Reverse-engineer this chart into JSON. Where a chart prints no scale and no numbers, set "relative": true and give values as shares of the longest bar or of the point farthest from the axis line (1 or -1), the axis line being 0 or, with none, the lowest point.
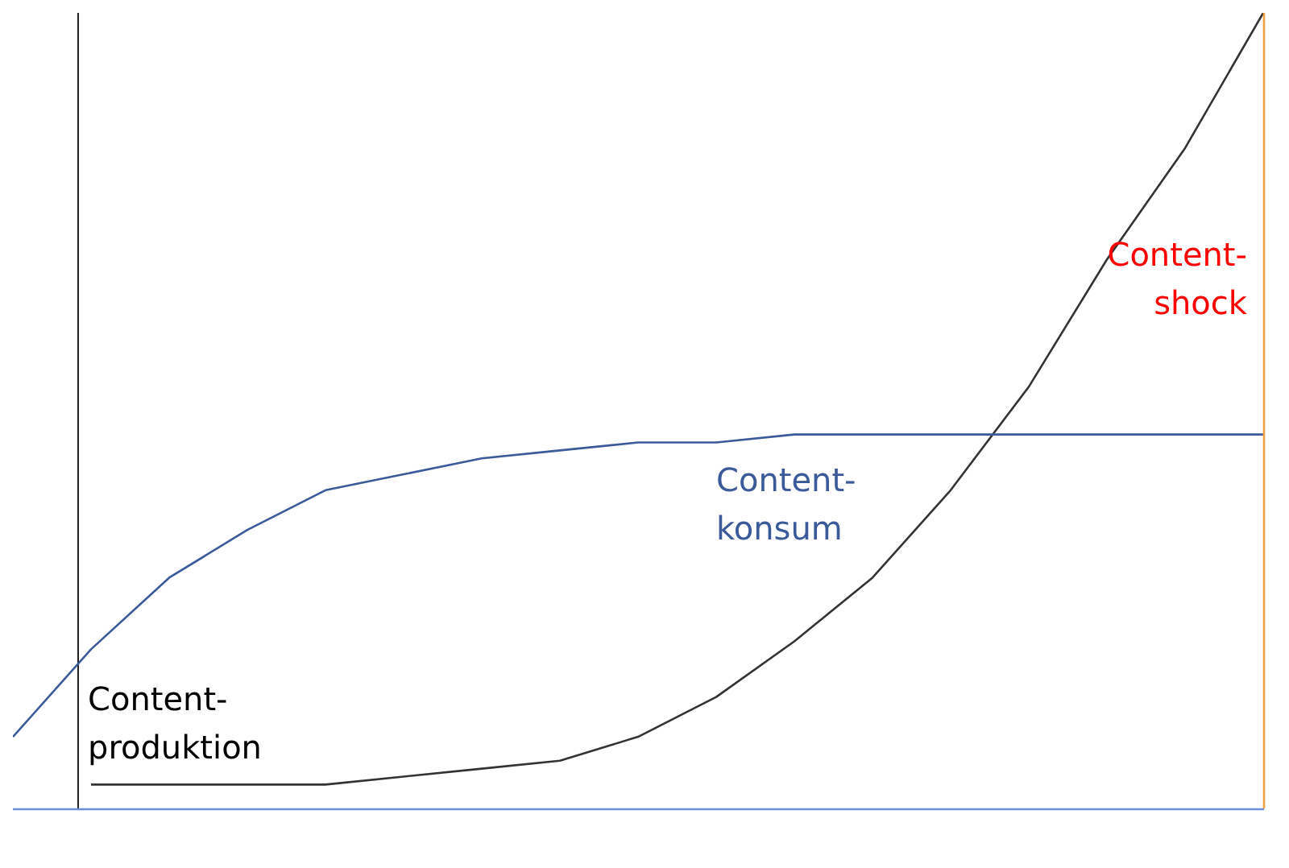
{
  "chart_data": {
    "type": "line",
    "relative": true,
    "categories": [
      null,
      null,
      null,
      null,
      null,
      null,
      null,
      null,
      null,
      null,
      null,
      null,
      null,
      null,
      null,
      null,
      null
    ],
    "tick_labels": false,
    "grid": false,
    "legend": false,
    "marker": "none",
    "line_style": "solid",
    "series": [
      {
        "name": "Content-produktion",
        "color": "#333333",
        "values": [
          null,
          0.03,
          0.03,
          0.03,
          0.03,
          0.04,
          0.05,
          0.06,
          0.09,
          0.14,
          0.21,
          0.29,
          0.4,
          0.53,
          0.69,
          0.83,
          1
        ]
      },
      {
        "name": "Content-konsum",
        "color": "#3a5a9a",
        "values": [
          0.09,
          0.2,
          0.29,
          0.35,
          0.4,
          0.42,
          0.44,
          0.45,
          0.46,
          0.46,
          0.47,
          0.47,
          0.47,
          0.47,
          0.47,
          0.47,
          0.47
        ]
      }
    ],
    "annotations": [
      "Content-shock"
    ]
  }
}
